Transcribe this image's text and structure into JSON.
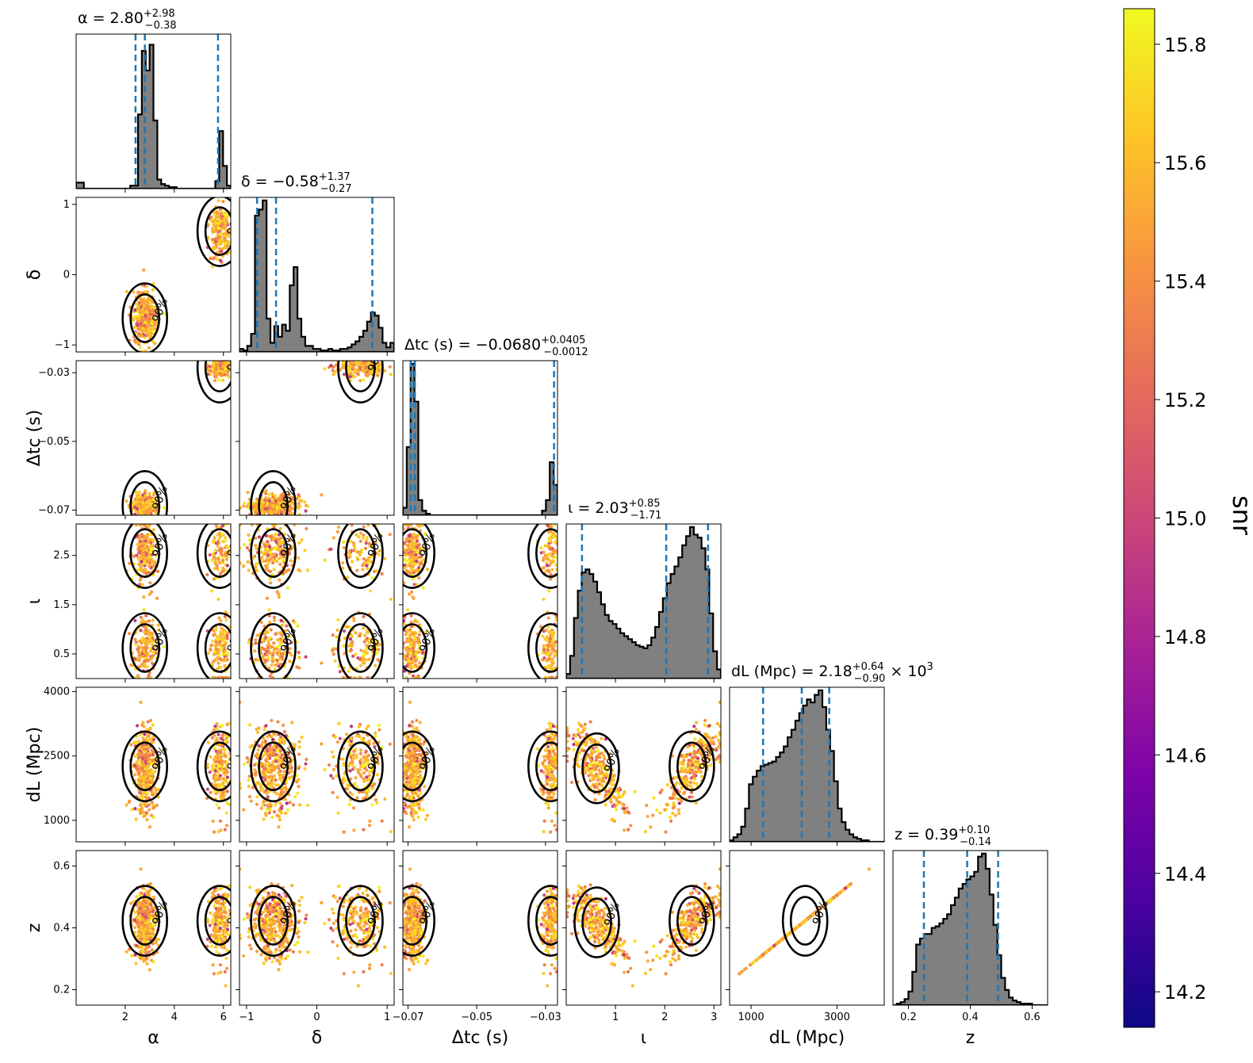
{
  "chart_data": {
    "type": "corner",
    "parameters": [
      {
        "name": "alpha",
        "label": "α",
        "range": [
          0.0,
          6.3
        ],
        "ticks": [
          2,
          4,
          6
        ],
        "tick_labels": [
          "2",
          "4",
          "6"
        ],
        "title": "α = 2.80",
        "upper": "+2.98",
        "lower": "−0.38",
        "suffix": "",
        "quantiles": [
          2.42,
          2.8,
          5.78
        ]
      },
      {
        "name": "delta",
        "label": "δ",
        "range": [
          -1.1,
          1.1
        ],
        "ticks": [
          -1,
          0,
          1
        ],
        "tick_labels": [
          "−1",
          "0",
          "1"
        ],
        "title": "δ = −0.58",
        "upper": "+1.37",
        "lower": "−0.27",
        "suffix": "",
        "quantiles": [
          -0.85,
          -0.58,
          0.79
        ]
      },
      {
        "name": "delta_tc",
        "label": "Δtc (s)",
        "range": [
          -0.0715,
          -0.0265
        ],
        "ticks": [
          -0.07,
          -0.05,
          -0.03
        ],
        "tick_labels": [
          "−0.07",
          "−0.05",
          "−0.03"
        ],
        "y_tick_labels": [
          "−0.07",
          "−0.05",
          "−0.03"
        ],
        "title": "Δtc (s) = −0.0680",
        "upper": "+0.0405",
        "lower": "−0.0012",
        "suffix": "",
        "quantiles": [
          -0.0692,
          -0.068,
          -0.0275
        ]
      },
      {
        "name": "inclination",
        "label": "ι",
        "range": [
          0.0,
          3.14
        ],
        "ticks": [
          1,
          2,
          3
        ],
        "tick_labels": [
          "1",
          "2",
          "3"
        ],
        "y_ticks": [
          0.5,
          1.5,
          2.5
        ],
        "y_tick_labels": [
          "0.5",
          "1.5",
          "2.5"
        ],
        "title": "ι = 2.03",
        "upper": "+0.85",
        "lower": "−1.71",
        "suffix": "",
        "quantiles": [
          0.32,
          2.03,
          2.88
        ]
      },
      {
        "name": "distance",
        "label": "dL (Mpc)",
        "range": [
          500,
          4100
        ],
        "ticks": [
          1000,
          3000
        ],
        "tick_labels": [
          "1000",
          "3000"
        ],
        "y_ticks": [
          1000,
          2500,
          4000
        ],
        "y_tick_labels": [
          "1000",
          "2500",
          "4000"
        ],
        "title": "dL (Mpc) = 2.18",
        "upper": "+0.64",
        "lower": "−0.90",
        "suffix": "× 10",
        "suffix_exp": "3",
        "quantiles": [
          1280,
          2180,
          2820
        ]
      },
      {
        "name": "redshift",
        "label": "z",
        "range": [
          0.15,
          0.65
        ],
        "ticks": [
          0.2,
          0.4,
          0.6
        ],
        "tick_labels": [
          "0.2",
          "0.4",
          "0.6"
        ],
        "y_ticks": [
          0.2,
          0.4,
          0.6
        ],
        "y_tick_labels": [
          "0.2",
          "0.4",
          "0.6"
        ],
        "title": "z = 0.39",
        "upper": "+0.10",
        "lower": "−0.14",
        "suffix": "",
        "quantiles": [
          0.25,
          0.39,
          0.49
        ]
      }
    ],
    "histograms": {
      "alpha": [
        0.04,
        0.04,
        0,
        0,
        0,
        0,
        0,
        0,
        0,
        0,
        0,
        0,
        0,
        0,
        0.02,
        0.02,
        0.49,
        0.91,
        0.78,
        0.95,
        0.45,
        0.06,
        0.03,
        0.02,
        0.01,
        0.01,
        0,
        0,
        0,
        0,
        0,
        0,
        0,
        0,
        0,
        0,
        0.05,
        0.38,
        0.15,
        0.02
      ],
      "delta": [
        0.02,
        0.01,
        0.04,
        0.12,
        0.9,
        0.94,
        1.0,
        0.22,
        0.06,
        0.17,
        0.1,
        0.18,
        0.14,
        0.44,
        0.56,
        0.22,
        0.1,
        0.04,
        0.04,
        0.02,
        0.02,
        0.01,
        0.01,
        0.02,
        0.01,
        0.01,
        0.02,
        0.02,
        0.03,
        0.05,
        0.07,
        0.1,
        0.14,
        0.2,
        0.26,
        0.24,
        0.16,
        0.06,
        0.03,
        0.06
      ],
      "delta_tc": [
        0.05,
        0.45,
        1.0,
        0.75,
        0.1,
        0.03,
        0.01,
        0,
        0,
        0,
        0,
        0,
        0,
        0,
        0,
        0,
        0,
        0,
        0,
        0,
        0,
        0,
        0,
        0,
        0,
        0,
        0,
        0,
        0,
        0,
        0,
        0,
        0,
        0,
        0,
        0,
        0.03,
        0.1,
        0.35,
        0.2
      ],
      "inclination": [
        0.03,
        0.15,
        0.4,
        0.58,
        0.7,
        0.72,
        0.69,
        0.64,
        0.57,
        0.49,
        0.42,
        0.38,
        0.36,
        0.33,
        0.3,
        0.28,
        0.26,
        0.24,
        0.22,
        0.21,
        0.2,
        0.22,
        0.27,
        0.34,
        0.44,
        0.53,
        0.63,
        0.69,
        0.74,
        0.8,
        0.88,
        0.94,
        1.0,
        0.95,
        0.93,
        0.86,
        0.72,
        0.43,
        0.18,
        0.06
      ],
      "distance": [
        0.01,
        0.03,
        0.05,
        0.1,
        0.22,
        0.38,
        0.43,
        0.47,
        0.5,
        0.51,
        0.52,
        0.53,
        0.56,
        0.59,
        0.63,
        0.69,
        0.74,
        0.8,
        0.85,
        0.9,
        0.94,
        0.92,
        0.97,
        1.0,
        0.89,
        0.74,
        0.6,
        0.4,
        0.22,
        0.13,
        0.08,
        0.05,
        0.03,
        0.02,
        0.01,
        0.01,
        0,
        0,
        0,
        0
      ],
      "redshift": [
        0,
        0.01,
        0.02,
        0.04,
        0.09,
        0.22,
        0.4,
        0.44,
        0.47,
        0.47,
        0.51,
        0.52,
        0.54,
        0.57,
        0.6,
        0.66,
        0.71,
        0.77,
        0.8,
        0.83,
        0.85,
        0.88,
        0.98,
        1.0,
        0.9,
        0.73,
        0.53,
        0.33,
        0.18,
        0.1,
        0.05,
        0.03,
        0.02,
        0.01,
        0.01,
        0.01,
        0,
        0,
        0,
        0
      ]
    },
    "scatter_color": "snr",
    "contour_levels": [
      "50%",
      "90%"
    ],
    "quantile_line_color": "#1f77b4",
    "histogram_fill": "#808080",
    "colorbar": {
      "label": "snr",
      "range": [
        14.14,
        15.86
      ],
      "ticks": [
        14.2,
        14.4,
        14.6,
        14.8,
        15.0,
        15.2,
        15.4,
        15.6,
        15.8
      ],
      "tick_labels": [
        "14.2",
        "14.4",
        "14.6",
        "14.8",
        "15.0",
        "15.2",
        "15.4",
        "15.6",
        "15.8"
      ],
      "colormap": "plasma"
    }
  }
}
